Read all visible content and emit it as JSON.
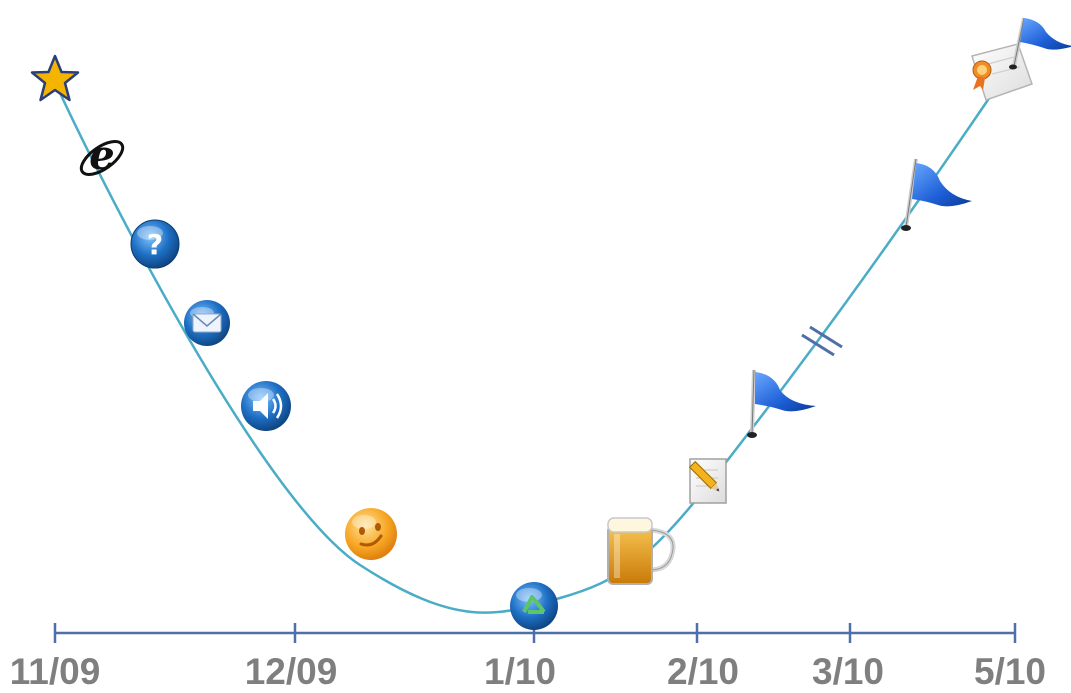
{
  "timeline": {
    "ticks": [
      {
        "label": "11/09"
      },
      {
        "label": "12/09"
      },
      {
        "label": "1/10"
      },
      {
        "label": "2/10"
      },
      {
        "label": "3/10"
      },
      {
        "label": "5/10"
      }
    ],
    "colors": {
      "curve": "#4bacc6",
      "axis": "#4f6fa8",
      "label": "#7f7f7f",
      "flag": "#1f5fcf",
      "star": "#f4b400"
    },
    "milestones": [
      {
        "icon": "star-icon"
      },
      {
        "icon": "internet-explorer-icon"
      },
      {
        "icon": "help-icon"
      },
      {
        "icon": "mail-icon"
      },
      {
        "icon": "speaker-icon"
      },
      {
        "icon": "smiley-icon"
      },
      {
        "icon": "recycle-icon"
      },
      {
        "icon": "beer-mug-icon"
      },
      {
        "icon": "notepad-pencil-icon"
      },
      {
        "icon": "flag-icon"
      },
      {
        "icon": "break-mark-icon"
      },
      {
        "icon": "flag-icon"
      },
      {
        "icon": "certificate-flag-icon"
      }
    ]
  }
}
